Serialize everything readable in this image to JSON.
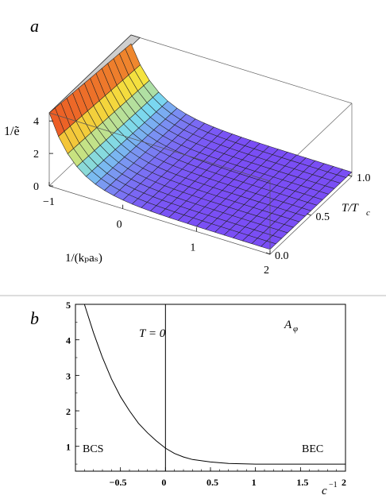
{
  "panels": {
    "a": {
      "panel_label": "a",
      "z_axis_label": "1/ẽ",
      "x_axis_label": "1/(kₚaₛ)",
      "y_axis_label": "T/T",
      "y_axis_label_sub": "c",
      "z_ticks": [
        "0",
        "2",
        "4"
      ],
      "x_ticks": [
        "−1",
        "0",
        "1",
        "2"
      ],
      "y_ticks": [
        "0.0",
        "0.5",
        "1.0"
      ]
    },
    "b": {
      "panel_label": "b",
      "annotation_T": "T = 0",
      "annotation_A": "A",
      "annotation_A_sub": "φ",
      "label_left": "BCS",
      "label_right": "BEC",
      "x_axis_label": "c",
      "x_axis_label_sup": "−1",
      "x_ticks": [
        "−0.5",
        "0",
        "0.5",
        "1",
        "1.5",
        "2"
      ],
      "y_ticks": [
        "1",
        "2",
        "3",
        "4",
        "5"
      ]
    }
  },
  "colors": {
    "surface_high": "#e8201a",
    "surface_mid": "#f5e840",
    "surface_cyan": "#7ad8f0",
    "surface_low": "#7a4ef5",
    "grid_line": "#222222",
    "plane": "#cfcfcf"
  },
  "chart_data": [
    {
      "type": "surface3d",
      "x_range": [
        -1,
        2
      ],
      "y_range": [
        0,
        1
      ],
      "z_range": [
        0,
        4.5
      ],
      "x_ticks": [
        -1,
        0,
        1,
        2
      ],
      "y_ticks": [
        0.0,
        0.5,
        1.0
      ],
      "z_ticks": [
        0,
        2,
        4
      ],
      "z_clip": 4.5,
      "surface": {
        "note_values": "z ≈ 1/ẽ(x, T/Tc); rises steeply toward x = -1, near-flat (~0.3) for x > 0.5, slight decrease with increasing T/Tc",
        "x_samples": [
          -1.0,
          -0.75,
          -0.5,
          -0.25,
          0.0,
          0.25,
          0.5,
          0.75,
          1.0,
          1.5,
          2.0
        ],
        "z_at_T0": [
          4.5,
          3.3,
          2.2,
          1.4,
          0.85,
          0.55,
          0.4,
          0.33,
          0.3,
          0.28,
          0.27
        ]
      }
    },
    {
      "type": "line",
      "x": [
        -0.9,
        -0.8,
        -0.7,
        -0.6,
        -0.5,
        -0.4,
        -0.3,
        -0.2,
        -0.1,
        0.0,
        0.1,
        0.2,
        0.3,
        0.5,
        0.7,
        1.0,
        1.3,
        1.6,
        2.0
      ],
      "y": [
        5.0,
        4.2,
        3.5,
        2.9,
        2.4,
        2.0,
        1.65,
        1.38,
        1.15,
        0.95,
        0.8,
        0.7,
        0.63,
        0.56,
        0.52,
        0.5,
        0.5,
        0.5,
        0.5
      ],
      "xlim": [
        -1.0,
        2.0
      ],
      "ylim": [
        0.3,
        5.0
      ],
      "vline_x": 0
    }
  ]
}
